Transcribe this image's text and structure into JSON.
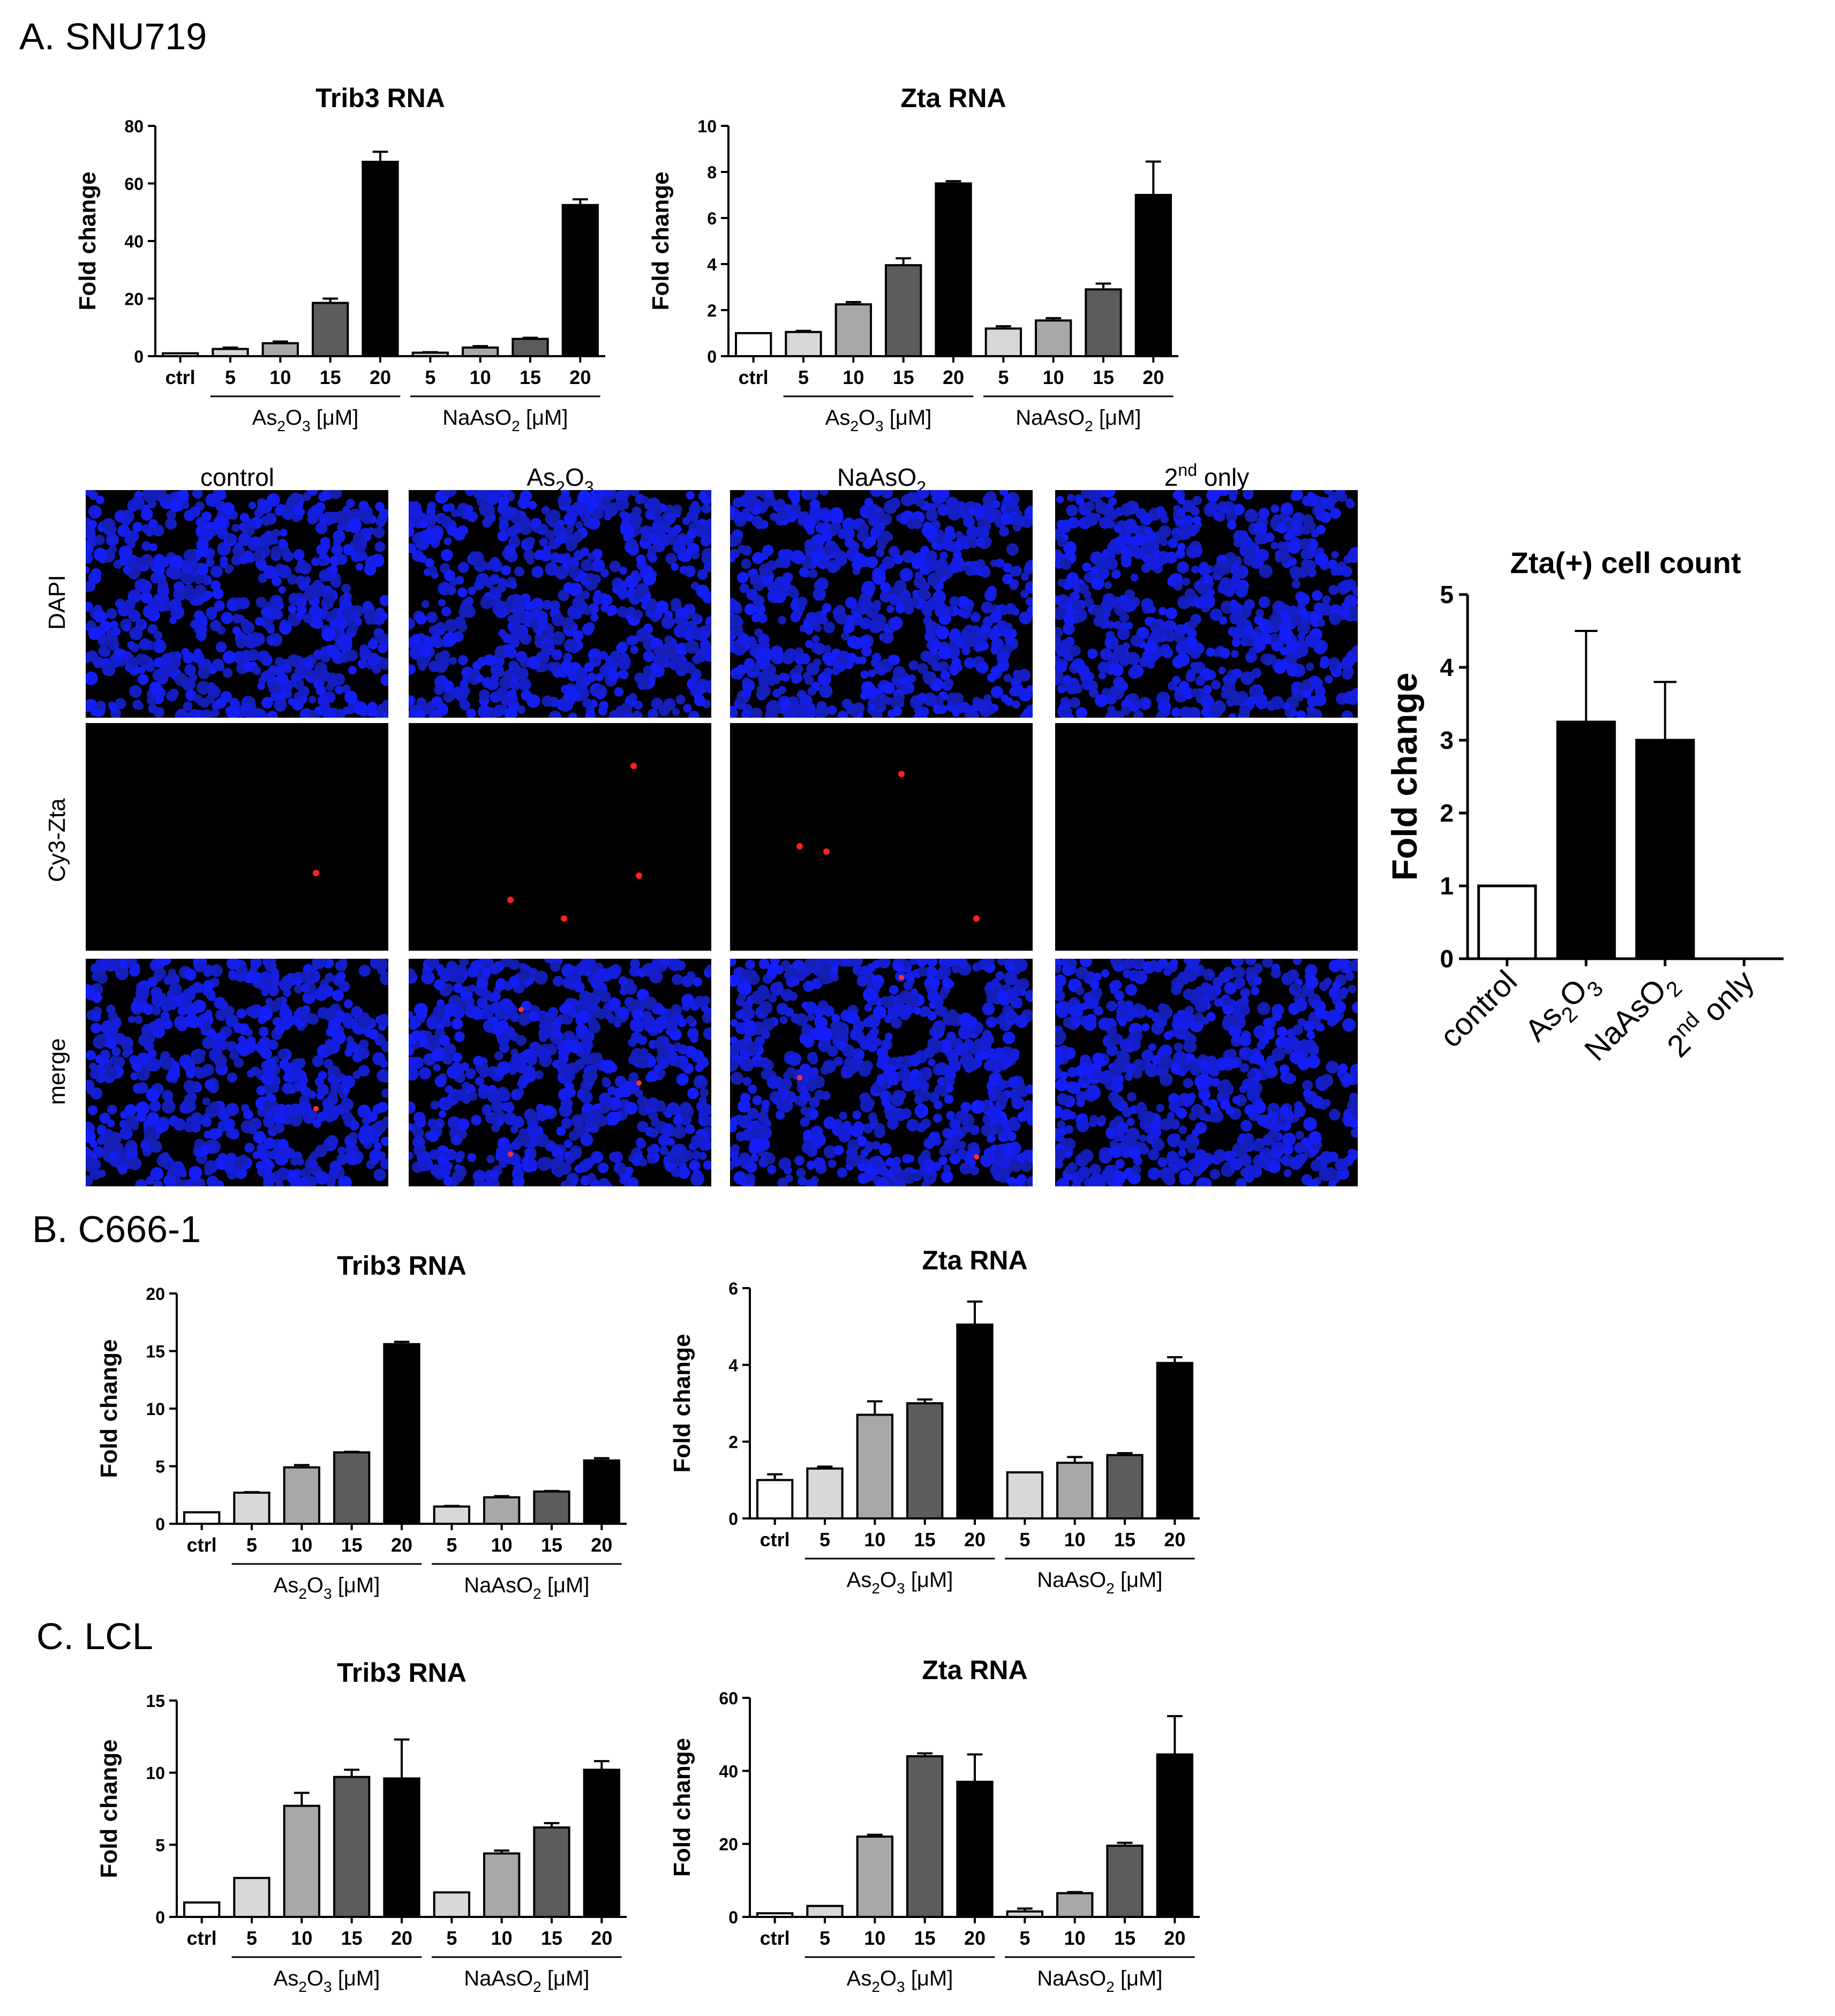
{
  "panels": {
    "a_label": "A. SNU719",
    "b_label": "B. C666-1",
    "c_label": "C. LCL"
  },
  "group_labels": {
    "as2o3": "As2O3 [μM]",
    "naaso2": "NaAsO2 [μM]"
  },
  "microscopy": {
    "columns": [
      "control",
      "As2O3",
      "NaAsO2",
      "2nd only"
    ],
    "rows": [
      "DAPI",
      "Cy3-Zta",
      "merge"
    ]
  },
  "chart_data": [
    {
      "id": "a_trib3",
      "type": "bar",
      "title": "Trib3 RNA",
      "ylabel": "Fold change",
      "ylim": [
        0,
        80
      ],
      "yticks": [
        0,
        20,
        40,
        60,
        80
      ],
      "categories": [
        "ctrl",
        "5",
        "10",
        "15",
        "20",
        "5",
        "10",
        "15",
        "20"
      ],
      "values": [
        1,
        2.5,
        4.5,
        18.5,
        67.5,
        1.2,
        3,
        6,
        52.5
      ],
      "errors": [
        0,
        0.5,
        0.6,
        1.5,
        3.5,
        0.2,
        0.5,
        0.4,
        2
      ],
      "colors": [
        "#ffffff",
        "#d8d8d8",
        "#a8a8a8",
        "#5c5c5c",
        "#000000",
        "#d8d8d8",
        "#a8a8a8",
        "#5c5c5c",
        "#000000"
      ],
      "groups": [
        "As2O3 [μM]",
        "NaAsO2 [μM]"
      ]
    },
    {
      "id": "a_zta",
      "type": "bar",
      "title": "Zta RNA",
      "ylabel": "Fold change",
      "ylim": [
        0,
        10
      ],
      "yticks": [
        0,
        2,
        4,
        6,
        8,
        10
      ],
      "categories": [
        "ctrl",
        "5",
        "10",
        "15",
        "20",
        "5",
        "10",
        "15",
        "20"
      ],
      "values": [
        1,
        1.05,
        2.25,
        3.95,
        7.5,
        1.2,
        1.55,
        2.9,
        7
      ],
      "errors": [
        0,
        0.05,
        0.1,
        0.3,
        0.1,
        0.1,
        0.1,
        0.25,
        1.45
      ],
      "colors": [
        "#ffffff",
        "#d8d8d8",
        "#a8a8a8",
        "#5c5c5c",
        "#000000",
        "#d8d8d8",
        "#a8a8a8",
        "#5c5c5c",
        "#000000"
      ],
      "groups": [
        "As2O3 [μM]",
        "NaAsO2 [μM]"
      ]
    },
    {
      "id": "a_count",
      "type": "bar",
      "title": "Zta(+) cell count",
      "ylabel": "Fold change",
      "ylim": [
        0,
        5
      ],
      "yticks": [
        0,
        1,
        2,
        3,
        4,
        5
      ],
      "categories": [
        "control",
        "As2O3",
        "NaAsO2",
        "2nd only"
      ],
      "values": [
        1,
        3.25,
        3,
        0
      ],
      "errors": [
        0,
        1.25,
        0.8,
        0
      ],
      "colors": [
        "#ffffff",
        "#000000",
        "#000000",
        "#000000"
      ]
    },
    {
      "id": "b_trib3",
      "type": "bar",
      "title": "Trib3 RNA",
      "ylabel": "Fold change",
      "ylim": [
        0,
        20
      ],
      "yticks": [
        0,
        5,
        10,
        15,
        20
      ],
      "categories": [
        "ctrl",
        "5",
        "10",
        "15",
        "20",
        "5",
        "10",
        "15",
        "20"
      ],
      "values": [
        1,
        2.7,
        4.9,
        6.2,
        15.6,
        1.5,
        2.3,
        2.8,
        5.5
      ],
      "errors": [
        0,
        0.05,
        0.2,
        0.05,
        0.2,
        0.05,
        0.1,
        0.05,
        0.2
      ],
      "colors": [
        "#ffffff",
        "#d8d8d8",
        "#a8a8a8",
        "#5c5c5c",
        "#000000",
        "#d8d8d8",
        "#a8a8a8",
        "#5c5c5c",
        "#000000"
      ],
      "groups": [
        "As2O3 [μM]",
        "NaAsO2 [μM]"
      ]
    },
    {
      "id": "b_zta",
      "type": "bar",
      "title": "Zta RNA",
      "ylabel": "Fold change",
      "ylim": [
        0,
        6
      ],
      "yticks": [
        0,
        2,
        4,
        6
      ],
      "categories": [
        "ctrl",
        "5",
        "10",
        "15",
        "20",
        "5",
        "10",
        "15",
        "20"
      ],
      "values": [
        1,
        1.3,
        2.7,
        3,
        5.05,
        1.2,
        1.45,
        1.65,
        4.05
      ],
      "errors": [
        0.15,
        0.05,
        0.35,
        0.1,
        0.6,
        0,
        0.15,
        0.05,
        0.15
      ],
      "colors": [
        "#ffffff",
        "#d8d8d8",
        "#a8a8a8",
        "#5c5c5c",
        "#000000",
        "#d8d8d8",
        "#a8a8a8",
        "#5c5c5c",
        "#000000"
      ],
      "groups": [
        "As2O3 [μM]",
        "NaAsO2 [μM]"
      ]
    },
    {
      "id": "c_trib3",
      "type": "bar",
      "title": "Trib3 RNA",
      "ylabel": "Fold change",
      "ylim": [
        0,
        15
      ],
      "yticks": [
        0,
        5,
        10,
        15
      ],
      "categories": [
        "ctrl",
        "5",
        "10",
        "15",
        "20",
        "5",
        "10",
        "15",
        "20"
      ],
      "values": [
        1,
        2.7,
        7.7,
        9.7,
        9.6,
        1.7,
        4.4,
        6.2,
        10.2
      ],
      "errors": [
        0,
        0,
        0.9,
        0.5,
        2.7,
        0,
        0.2,
        0.3,
        0.6
      ],
      "colors": [
        "#ffffff",
        "#d8d8d8",
        "#a8a8a8",
        "#5c5c5c",
        "#000000",
        "#d8d8d8",
        "#a8a8a8",
        "#5c5c5c",
        "#000000"
      ],
      "groups": [
        "As2O3 [μM]",
        "NaAsO2 [μM]"
      ]
    },
    {
      "id": "c_zta",
      "type": "bar",
      "title": "Zta RNA",
      "ylabel": "Fold change",
      "ylim": [
        0,
        60
      ],
      "yticks": [
        0,
        20,
        40,
        60
      ],
      "categories": [
        "ctrl",
        "5",
        "10",
        "15",
        "20",
        "5",
        "10",
        "15",
        "20"
      ],
      "values": [
        1,
        3,
        22,
        44,
        37,
        1.5,
        6.5,
        19.5,
        44.5
      ],
      "errors": [
        0,
        0,
        0.5,
        0.8,
        7.5,
        0.8,
        0.3,
        0.8,
        10.5
      ],
      "colors": [
        "#ffffff",
        "#d8d8d8",
        "#a8a8a8",
        "#5c5c5c",
        "#000000",
        "#d8d8d8",
        "#a8a8a8",
        "#5c5c5c",
        "#000000"
      ],
      "groups": [
        "As2O3 [μM]",
        "NaAsO2 [μM]"
      ]
    }
  ]
}
